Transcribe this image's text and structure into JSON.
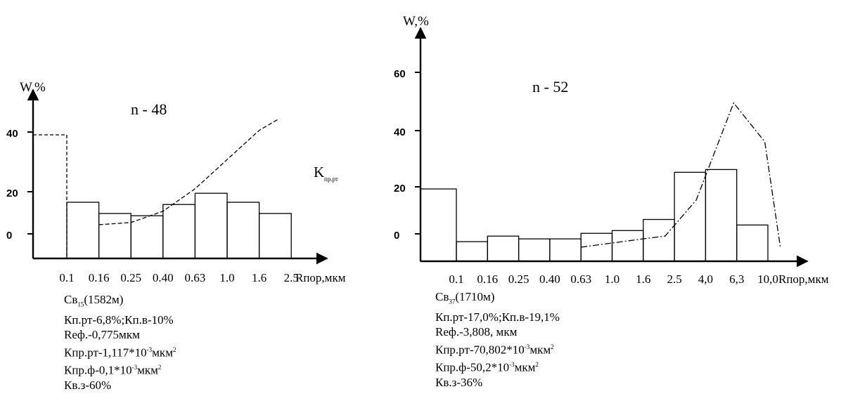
{
  "chart_data": [
    {
      "type": "bar",
      "ylabel": "W,%",
      "xlabel": "Rпор,мкм",
      "annotation": "n - 48",
      "legend_label": "K",
      "legend_sub": "пр.рт",
      "y_tick_labels": [
        "40",
        "20",
        "0"
      ],
      "x_tick_labels": [
        "0.1",
        "0.16",
        "0.25",
        "0.40",
        "0.63",
        "1.0",
        "1.6",
        "2.5"
      ],
      "bin_edges": [
        "0.1",
        "0.16",
        "0.25",
        "0.40",
        "0.63",
        "1.0",
        "1.6",
        "2.5"
      ],
      "first_bin_value": 40,
      "values": [
        40,
        10,
        5,
        4,
        9,
        14,
        10,
        5
      ],
      "curve": {
        "style": "dashed",
        "x_index": [
          2.0,
          3.0,
          4.0,
          5.0,
          6.0,
          7.0,
          7.6
        ],
        "y": [
          0,
          1,
          6,
          16,
          29,
          42,
          47
        ]
      },
      "ylim": [
        -5,
        47
      ],
      "info": {
        "well": "Св",
        "well_sub": "15",
        "well_depth": "(1582м)",
        "line2": "Кп.рт-6,8%;Кп.в-10%",
        "line3": "Reф.-0,775мкм",
        "line4_pre": "Кпр.рт-1,117*10",
        "line4_exp": "-3",
        "line4_post": "мкм",
        "line4_exp2": "2",
        "line5_pre": "Кпр.ф-0,1*10",
        "line5_exp": "-3",
        "line5_post": "мкм",
        "line5_exp2": "2",
        "line6": "Кв.з-60%"
      }
    },
    {
      "type": "bar",
      "ylabel": "W,%",
      "xlabel": "Rпор,мкм",
      "annotation": "n - 52",
      "y_tick_labels": [
        "60",
        "40",
        "20",
        "0"
      ],
      "x_tick_labels": [
        "0.1",
        "0.16",
        "0.25",
        "0.40",
        "0.63",
        "1.0",
        "1.6",
        "2.5",
        "4,0",
        "6,3",
        "10,0"
      ],
      "bin_edges": [
        "0.1",
        "0.16",
        "0.25",
        "0.40",
        "0.63",
        "1.0",
        "1.6",
        "2.5",
        "4,0",
        "6,3",
        "10,0"
      ],
      "values": [
        21,
        2,
        4,
        3,
        3,
        5,
        6,
        10,
        27,
        28,
        8
      ],
      "curve": {
        "style": "dash-dot",
        "x_index": [
          5.0,
          7.0,
          7.7,
          8.7,
          9.9,
          10.9,
          11.4
        ],
        "y": [
          0,
          3,
          4,
          17,
          52,
          38,
          0
        ]
      },
      "ylim": [
        -5,
        65
      ],
      "info": {
        "well": "Св",
        "well_sub": "37",
        "well_depth": "(1710м)",
        "line2": "Кп.рт-17,0%;Кп.в-19,1%",
        "line3": "Reф.-3,808, мкм",
        "line4_pre": "Кпр.рт-70,802*10",
        "line4_exp": "-3",
        "line4_post": "мкм",
        "line4_exp2": "2",
        "line5_pre": "Кпр.ф-50,2*10",
        "line5_exp": "-3",
        "line5_post": "мкм",
        "line5_exp2": "2",
        "line6": "Кв.з-36%"
      }
    }
  ]
}
